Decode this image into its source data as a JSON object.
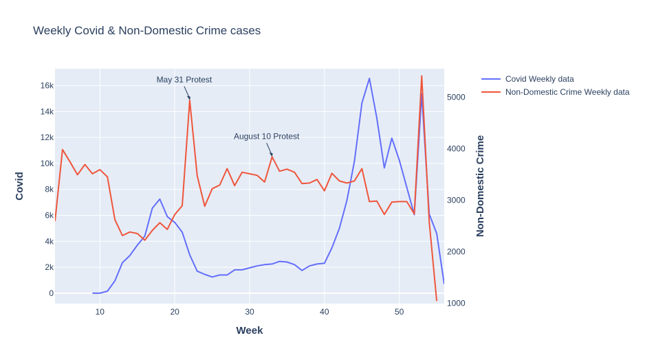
{
  "chart_data": {
    "type": "line",
    "title": "Weekly Covid & Non-Domestic Crime cases",
    "xlabel": "Week",
    "ylabel": "Covid",
    "y2label": "Non-Domestic Crime",
    "xlim": [
      4,
      56
    ],
    "ylim": [
      -800,
      17300
    ],
    "y2lim": [
      990,
      5550
    ],
    "xticks": [
      10,
      20,
      30,
      40,
      50
    ],
    "yticks": [
      0,
      2000,
      4000,
      6000,
      8000,
      10000,
      12000,
      14000,
      16000
    ],
    "ytick_labels": [
      "0",
      "2k",
      "4k",
      "6k",
      "8k",
      "10k",
      "12k",
      "14k",
      "16k"
    ],
    "y2ticks": [
      1000,
      2000,
      3000,
      4000,
      5000
    ],
    "grid": true,
    "legend_position": "top-right outside",
    "background": "#E5ECF6",
    "series": [
      {
        "name": "Covid Weekly data",
        "axis": "y",
        "color": "#636EFA",
        "x": [
          9,
          10,
          11,
          12,
          13,
          14,
          15,
          16,
          17,
          18,
          19,
          20,
          21,
          22,
          23,
          24,
          25,
          26,
          27,
          28,
          29,
          30,
          31,
          32,
          33,
          34,
          35,
          36,
          37,
          38,
          39,
          40,
          41,
          42,
          43,
          44,
          45,
          46,
          47,
          48,
          49,
          50,
          51,
          52,
          53,
          54,
          55,
          56
        ],
        "y": [
          0,
          0,
          150,
          950,
          2350,
          2900,
          3700,
          4400,
          6550,
          7250,
          5900,
          5450,
          4700,
          2950,
          1700,
          1450,
          1250,
          1400,
          1400,
          1800,
          1800,
          1950,
          2100,
          2200,
          2250,
          2450,
          2400,
          2200,
          1750,
          2100,
          2250,
          2300,
          3500,
          5000,
          7150,
          10150,
          14650,
          16550,
          13500,
          9650,
          11950,
          10250,
          8150,
          6050,
          15350,
          6100,
          4600,
          700
        ]
      },
      {
        "name": "Non-Domestic Crime Weekly data",
        "axis": "y2",
        "color": "#EF553B",
        "x": [
          4,
          5,
          6,
          7,
          8,
          9,
          10,
          11,
          12,
          13,
          14,
          15,
          16,
          17,
          18,
          19,
          20,
          21,
          22,
          23,
          24,
          25,
          26,
          27,
          28,
          29,
          30,
          31,
          32,
          33,
          34,
          35,
          36,
          37,
          38,
          39,
          40,
          41,
          42,
          43,
          44,
          45,
          46,
          47,
          48,
          49,
          50,
          51,
          52,
          53,
          54,
          55
        ],
        "y": [
          2590,
          3980,
          3740,
          3490,
          3690,
          3510,
          3590,
          3450,
          2620,
          2310,
          2380,
          2350,
          2220,
          2410,
          2560,
          2430,
          2720,
          2890,
          4940,
          3470,
          2880,
          3220,
          3290,
          3610,
          3280,
          3540,
          3510,
          3480,
          3350,
          3840,
          3560,
          3600,
          3540,
          3320,
          3330,
          3400,
          3180,
          3520,
          3370,
          3330,
          3370,
          3610,
          2970,
          2980,
          2720,
          2960,
          2970,
          2970,
          2730,
          5410,
          2580,
          1040
        ]
      }
    ],
    "annotations": [
      {
        "text": "May 31 Protest",
        "x": 22,
        "y2": 4940
      },
      {
        "text": "August 10 Protest",
        "x": 33,
        "y2": 3840
      }
    ]
  }
}
